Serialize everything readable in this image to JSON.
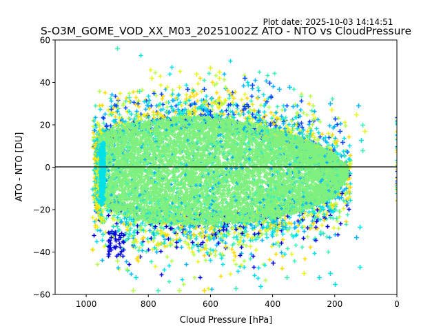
{
  "chart_data": {
    "type": "scatter",
    "title": "S-O3M_GOME_VOD_XX_M03_20251002Z ATO - NTO vs CloudPressure",
    "subtitle": "Plot date: 2025-10-03 14:14:51",
    "xlabel": "Cloud Pressure [hPa]",
    "ylabel": "ATO - NTO [DU]",
    "xlim": [
      1100,
      0
    ],
    "ylim": [
      -60,
      60
    ],
    "xticks": [
      1000,
      800,
      600,
      400,
      200,
      0
    ],
    "yticks": [
      60,
      40,
      20,
      0,
      -20,
      -40,
      -60
    ],
    "xtick_labels": [
      "1000",
      "800",
      "600",
      "400",
      "200",
      "0"
    ],
    "ytick_labels": [
      "60",
      "40",
      "20",
      "0",
      "−20",
      "−40",
      "−60"
    ],
    "reference_line_y": 0,
    "grid": false,
    "marker": "+",
    "colors": {
      "core": "#7ff07f",
      "darkblue": "#0000d8",
      "blue": "#0044ff",
      "skyblue": "#00b4ff",
      "cyan": "#00e0e8",
      "aqua": "#3cf0b4",
      "lime": "#b4ff4c",
      "yellow": "#e8f41c",
      "gold": "#ffd800",
      "orange": "#ffa800"
    },
    "dense_core": {
      "pressure_range": [
        960,
        160
      ],
      "value_upper": [
        [
          960,
          14
        ],
        [
          900,
          20
        ],
        [
          800,
          22
        ],
        [
          700,
          24
        ],
        [
          600,
          24
        ],
        [
          500,
          22
        ],
        [
          400,
          18
        ],
        [
          300,
          14
        ],
        [
          200,
          6
        ],
        [
          160,
          0
        ]
      ],
      "value_lower": [
        [
          960,
          -14
        ],
        [
          900,
          -22
        ],
        [
          800,
          -26
        ],
        [
          700,
          -27
        ],
        [
          600,
          -27
        ],
        [
          500,
          -26
        ],
        [
          400,
          -24
        ],
        [
          300,
          -20
        ],
        [
          200,
          -14
        ],
        [
          160,
          -4
        ]
      ],
      "points": 9000
    },
    "fringe_series": [
      {
        "name": "upper-fringe",
        "count": 1400,
        "colors": [
          "skyblue",
          "yellow",
          "aqua",
          "cyan",
          "gold",
          "lime",
          "blue"
        ],
        "side": "upper",
        "spread": 14
      },
      {
        "name": "lower-fringe",
        "count": 1400,
        "colors": [
          "cyan",
          "gold",
          "yellow",
          "aqua",
          "lime",
          "skyblue",
          "darkblue"
        ],
        "side": "lower",
        "spread": 16
      },
      {
        "name": "left-edge",
        "count": 500,
        "colors": [
          "gold",
          "yellow",
          "cyan"
        ],
        "side": "left",
        "spread": 5
      }
    ],
    "clusters": [
      {
        "name": "darkblue-cluster",
        "color": "darkblue",
        "pressure": [
          930,
          880
        ],
        "value": [
          -42,
          -30
        ],
        "count": 40
      }
    ],
    "edge_column": {
      "pressure": 0,
      "value_range": [
        -16,
        24
      ],
      "colors": [
        "skyblue",
        "cyan",
        "aqua",
        "yellow",
        "gold",
        "blue",
        "lime"
      ],
      "count": 40
    },
    "outliers": [
      {
        "p": 900,
        "v": 56,
        "c": "aqua"
      },
      {
        "p": 790,
        "v": 42,
        "c": "yellow"
      },
      {
        "p": 645,
        "v": 44,
        "c": "yellow"
      },
      {
        "p": 600,
        "v": 47,
        "c": "yellow"
      },
      {
        "p": 572,
        "v": 45,
        "c": "yellow"
      },
      {
        "p": 572,
        "v": 42,
        "c": "yellow"
      },
      {
        "p": 700,
        "v": 38,
        "c": "yellow"
      },
      {
        "p": 740,
        "v": 38,
        "c": "yellow"
      },
      {
        "p": 830,
        "v": 36,
        "c": "aqua"
      },
      {
        "p": 862,
        "v": 33,
        "c": "aqua"
      },
      {
        "p": 675,
        "v": 37,
        "c": "blue"
      },
      {
        "p": 620,
        "v": 37,
        "c": "blue"
      },
      {
        "p": 490,
        "v": 42,
        "c": "blue"
      },
      {
        "p": 465,
        "v": 39,
        "c": "blue"
      },
      {
        "p": 410,
        "v": 40,
        "c": "blue"
      },
      {
        "p": 380,
        "v": 37,
        "c": "skyblue"
      },
      {
        "p": 345,
        "v": 38,
        "c": "skyblue"
      },
      {
        "p": 270,
        "v": 29,
        "c": "lime"
      },
      {
        "p": 215,
        "v": 30,
        "c": "skyblue"
      },
      {
        "p": 210,
        "v": 27,
        "c": "yellow"
      },
      {
        "p": 200,
        "v": 23,
        "c": "blue"
      },
      {
        "p": 185,
        "v": 17,
        "c": "blue"
      },
      {
        "p": 175,
        "v": 12,
        "c": "blue"
      },
      {
        "p": 125,
        "v": 29,
        "c": "skyblue"
      },
      {
        "p": 130,
        "v": 25,
        "c": "yellow"
      },
      {
        "p": 110,
        "v": 20,
        "c": "aqua"
      },
      {
        "p": 105,
        "v": 17,
        "c": "yellow"
      },
      {
        "p": 115,
        "v": 13,
        "c": "cyan"
      },
      {
        "p": 110,
        "v": 8,
        "c": "aqua"
      },
      {
        "p": 120,
        "v": -28,
        "c": "cyan"
      },
      {
        "p": 130,
        "v": -33,
        "c": "skyblue"
      },
      {
        "p": 120,
        "v": -47,
        "c": "cyan"
      },
      {
        "p": 200,
        "v": -55,
        "c": "cyan"
      },
      {
        "p": 215,
        "v": -50,
        "c": "cyan"
      },
      {
        "p": 250,
        "v": -52,
        "c": "cyan"
      },
      {
        "p": 300,
        "v": -50,
        "c": "yellow"
      },
      {
        "p": 355,
        "v": -52,
        "c": "aqua"
      },
      {
        "p": 400,
        "v": -45,
        "c": "darkblue"
      },
      {
        "p": 440,
        "v": -56,
        "c": "cyan"
      },
      {
        "p": 520,
        "v": -57,
        "c": "aqua"
      },
      {
        "p": 620,
        "v": -58,
        "c": "gold"
      },
      {
        "p": 700,
        "v": -58,
        "c": "lime"
      },
      {
        "p": 770,
        "v": -58,
        "c": "aqua"
      },
      {
        "p": 850,
        "v": -58,
        "c": "lime"
      },
      {
        "p": 840,
        "v": -52,
        "c": "cyan"
      },
      {
        "p": 870,
        "v": -48,
        "c": "lime"
      },
      {
        "p": 900,
        "v": -44,
        "c": "lime"
      }
    ]
  }
}
